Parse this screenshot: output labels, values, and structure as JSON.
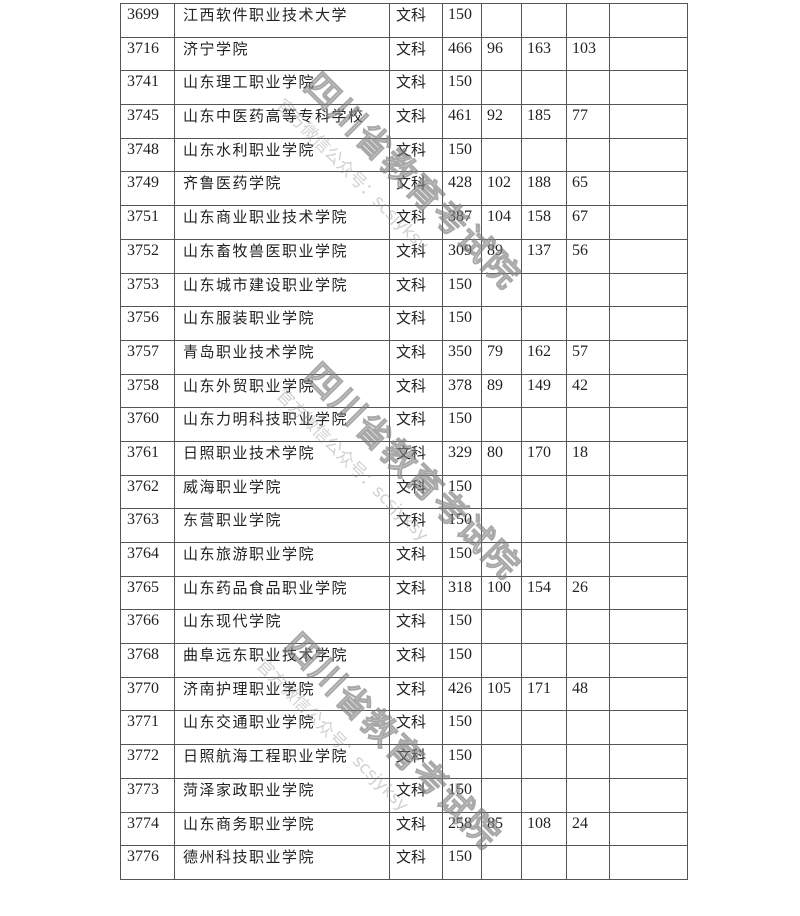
{
  "table": {
    "rows": [
      {
        "code": "3699",
        "name": "江西软件职业技术大学",
        "subject": "文科",
        "c1": "150",
        "c2": "",
        "c3": "",
        "c4": "",
        "c5": ""
      },
      {
        "code": "3716",
        "name": "济宁学院",
        "subject": "文科",
        "c1": "466",
        "c2": "96",
        "c3": "163",
        "c4": "103",
        "c5": ""
      },
      {
        "code": "3741",
        "name": "山东理工职业学院",
        "subject": "文科",
        "c1": "150",
        "c2": "",
        "c3": "",
        "c4": "",
        "c5": ""
      },
      {
        "code": "3745",
        "name": "山东中医药高等专科学校",
        "subject": "文科",
        "c1": "461",
        "c2": "92",
        "c3": "185",
        "c4": "77",
        "c5": ""
      },
      {
        "code": "3748",
        "name": "山东水利职业学院",
        "subject": "文科",
        "c1": "150",
        "c2": "",
        "c3": "",
        "c4": "",
        "c5": ""
      },
      {
        "code": "3749",
        "name": "齐鲁医药学院",
        "subject": "文科",
        "c1": "428",
        "c2": "102",
        "c3": "188",
        "c4": "65",
        "c5": ""
      },
      {
        "code": "3751",
        "name": "山东商业职业技术学院",
        "subject": "文科",
        "c1": "387",
        "c2": "104",
        "c3": "158",
        "c4": "67",
        "c5": ""
      },
      {
        "code": "3752",
        "name": "山东畜牧兽医职业学院",
        "subject": "文科",
        "c1": "309",
        "c2": "89",
        "c3": "137",
        "c4": "56",
        "c5": ""
      },
      {
        "code": "3753",
        "name": "山东城市建设职业学院",
        "subject": "文科",
        "c1": "150",
        "c2": "",
        "c3": "",
        "c4": "",
        "c5": ""
      },
      {
        "code": "3756",
        "name": "山东服装职业学院",
        "subject": "文科",
        "c1": "150",
        "c2": "",
        "c3": "",
        "c4": "",
        "c5": ""
      },
      {
        "code": "3757",
        "name": "青岛职业技术学院",
        "subject": "文科",
        "c1": "350",
        "c2": "79",
        "c3": "162",
        "c4": "57",
        "c5": ""
      },
      {
        "code": "3758",
        "name": "山东外贸职业学院",
        "subject": "文科",
        "c1": "378",
        "c2": "89",
        "c3": "149",
        "c4": "42",
        "c5": ""
      },
      {
        "code": "3760",
        "name": "山东力明科技职业学院",
        "subject": "文科",
        "c1": "150",
        "c2": "",
        "c3": "",
        "c4": "",
        "c5": ""
      },
      {
        "code": "3761",
        "name": "日照职业技术学院",
        "subject": "文科",
        "c1": "329",
        "c2": "80",
        "c3": "170",
        "c4": "18",
        "c5": ""
      },
      {
        "code": "3762",
        "name": "威海职业学院",
        "subject": "文科",
        "c1": "150",
        "c2": "",
        "c3": "",
        "c4": "",
        "c5": ""
      },
      {
        "code": "3763",
        "name": "东营职业学院",
        "subject": "文科",
        "c1": "150",
        "c2": "",
        "c3": "",
        "c4": "",
        "c5": ""
      },
      {
        "code": "3764",
        "name": "山东旅游职业学院",
        "subject": "文科",
        "c1": "150",
        "c2": "",
        "c3": "",
        "c4": "",
        "c5": ""
      },
      {
        "code": "3765",
        "name": "山东药品食品职业学院",
        "subject": "文科",
        "c1": "318",
        "c2": "100",
        "c3": "154",
        "c4": "26",
        "c5": ""
      },
      {
        "code": "3766",
        "name": "山东现代学院",
        "subject": "文科",
        "c1": "150",
        "c2": "",
        "c3": "",
        "c4": "",
        "c5": ""
      },
      {
        "code": "3768",
        "name": "曲阜远东职业技术学院",
        "subject": "文科",
        "c1": "150",
        "c2": "",
        "c3": "",
        "c4": "",
        "c5": ""
      },
      {
        "code": "3770",
        "name": "济南护理职业学院",
        "subject": "文科",
        "c1": "426",
        "c2": "105",
        "c3": "171",
        "c4": "48",
        "c5": ""
      },
      {
        "code": "3771",
        "name": "山东交通职业学院",
        "subject": "文科",
        "c1": "150",
        "c2": "",
        "c3": "",
        "c4": "",
        "c5": ""
      },
      {
        "code": "3772",
        "name": "日照航海工程职业学院",
        "subject": "文科",
        "c1": "150",
        "c2": "",
        "c3": "",
        "c4": "",
        "c5": ""
      },
      {
        "code": "3773",
        "name": "菏泽家政职业学院",
        "subject": "文科",
        "c1": "150",
        "c2": "",
        "c3": "",
        "c4": "",
        "c5": ""
      },
      {
        "code": "3774",
        "name": "山东商务职业学院",
        "subject": "文科",
        "c1": "258",
        "c2": "85",
        "c3": "108",
        "c4": "24",
        "c5": ""
      },
      {
        "code": "3776",
        "name": "德州科技职业学院",
        "subject": "文科",
        "c1": "150",
        "c2": "",
        "c3": "",
        "c4": "",
        "c5": ""
      }
    ]
  },
  "watermark": {
    "title": "四川省教育考试院",
    "subtitle": "官方微信公众号：scsjyksy"
  }
}
